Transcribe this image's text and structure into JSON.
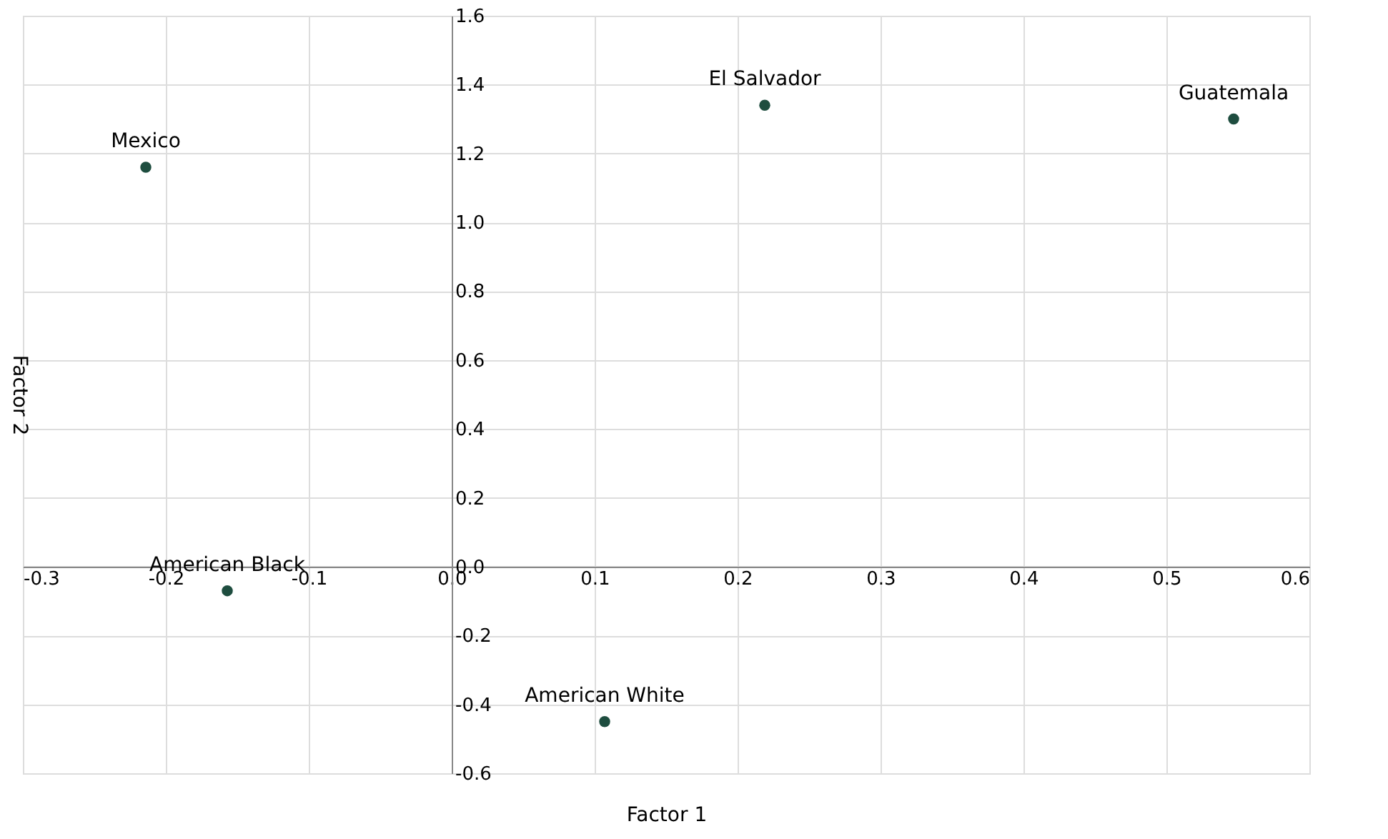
{
  "chart_data": {
    "type": "scatter",
    "xlabel": "Factor 1",
    "ylabel": "Factor 2",
    "x": [
      -0.214,
      0.219,
      0.547,
      -0.157,
      0.107
    ],
    "series": [
      {
        "color": "#1e4d3f",
        "values": [
          1.16,
          1.34,
          1.3,
          -0.07,
          -0.45
        ]
      }
    ],
    "annotations": [
      {
        "text": "Mexico",
        "x": -0.214,
        "y": 1.16
      },
      {
        "text": "El Salvador",
        "x": 0.219,
        "y": 1.34
      },
      {
        "text": "Guatemala",
        "x": 0.547,
        "y": 1.3
      },
      {
        "text": "American Black",
        "x": -0.157,
        "y": -0.07
      },
      {
        "text": "American White",
        "x": 0.107,
        "y": -0.45
      }
    ],
    "xlim": [
      -0.3,
      0.6
    ],
    "xticks": [
      -0.3,
      -0.2,
      -0.1,
      {
        "value": 0,
        "label": "0.0"
      },
      0.1,
      0.2,
      0.3,
      0.4,
      0.5,
      0.6
    ],
    "ylim": [
      -0.6,
      1.6
    ],
    "yticks": [
      -0.6,
      -0.4,
      -0.2,
      {
        "value": 0,
        "label": "0.0"
      },
      0.2,
      0.4,
      0.6,
      0.8,
      {
        "value": 1,
        "label": "1.0"
      },
      1.2,
      1.4,
      1.6
    ],
    "grid": true,
    "marker": "circle"
  }
}
